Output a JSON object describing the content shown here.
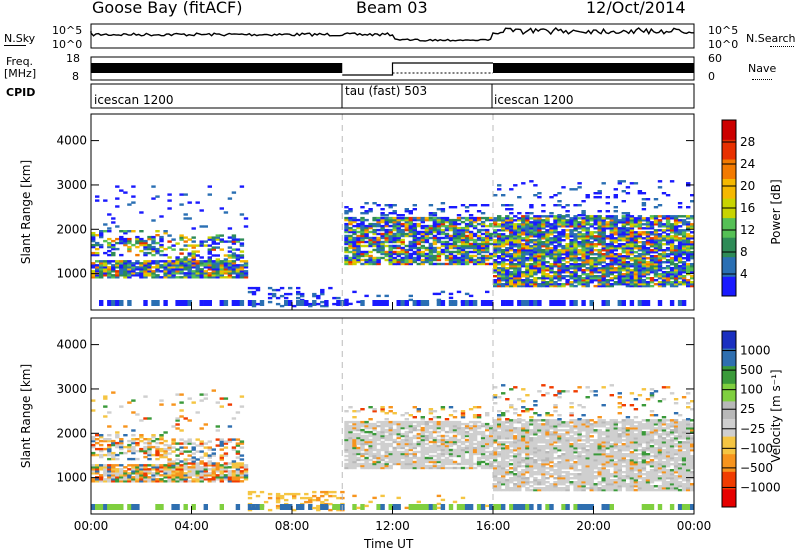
{
  "header": {
    "station": "Goose Bay (fitACF)",
    "beam": "Beam 03",
    "date": "12/Oct/2014"
  },
  "noise_panel": {
    "left_label": "N.Sky",
    "right_label": "N.Search",
    "left_ticks": [
      "10^5",
      "10^0"
    ],
    "right_ticks": [
      "10^5",
      "10^0"
    ]
  },
  "freq_panel": {
    "left_label_1": "Freq.",
    "left_label_2": "[MHz]",
    "right_label": "Nave",
    "left_ticks": [
      "18",
      "8"
    ],
    "right_ticks": [
      "60",
      "0"
    ]
  },
  "cpid": {
    "label": "CPID",
    "segments": [
      {
        "name": "icescan 1200",
        "start": 0,
        "end": 10
      },
      {
        "name": "tau (fast) 503",
        "start": 10,
        "end": 16
      },
      {
        "name": "icescan 1200",
        "start": 16,
        "end": 24
      }
    ]
  },
  "colors": {
    "power": [
      "#1a1aff",
      "#2a6fb3",
      "#2e8b57",
      "#55c055",
      "#c8d400",
      "#f5b800",
      "#f27a00",
      "#e83000",
      "#cc0000"
    ],
    "velocity": [
      "#e60000",
      "#f03c00",
      "#f7941d",
      "#f5c542",
      "#cfcfcf",
      "#b8b8b8",
      "#7fcf3f",
      "#3a9a3a",
      "#2f6fb0",
      "#1a2fc0"
    ]
  },
  "chart_data": [
    {
      "type": "heatmap",
      "name": "power",
      "ylabel": "Slant Range [km]",
      "yticks": [
        1000,
        2000,
        3000,
        4000
      ],
      "ylim": [
        180,
        4600
      ],
      "xlim": [
        0,
        24
      ],
      "xticks": [
        "00:00",
        "04:00",
        "08:00",
        "12:00",
        "16:00",
        "20:00",
        "00:00"
      ],
      "xtick_hours": [
        0,
        4,
        8,
        12,
        16,
        20,
        24
      ],
      "vertical_markers_hours": [
        10,
        16
      ],
      "colorbar": {
        "label": "Power [dB]",
        "ticks": [
          4,
          8,
          12,
          16,
          20,
          24,
          28
        ],
        "range": [
          0,
          32
        ]
      }
    },
    {
      "type": "heatmap",
      "name": "velocity",
      "xlabel": "Time UT",
      "ylabel": "Slant Range [km]",
      "yticks": [
        1000,
        2000,
        3000,
        4000
      ],
      "ylim": [
        180,
        4600
      ],
      "xlim": [
        0,
        24
      ],
      "xticks": [
        "00:00",
        "04:00",
        "08:00",
        "12:00",
        "16:00",
        "20:00",
        "00:00"
      ],
      "xtick_hours": [
        0,
        4,
        8,
        12,
        16,
        20,
        24
      ],
      "vertical_markers_hours": [
        10,
        16
      ],
      "colorbar": {
        "label": "Velocity [m s⁻¹]",
        "ticks": [
          "1000",
          "500",
          "100",
          "25",
          "−25",
          "−100",
          "−500",
          "−1000"
        ]
      }
    }
  ]
}
